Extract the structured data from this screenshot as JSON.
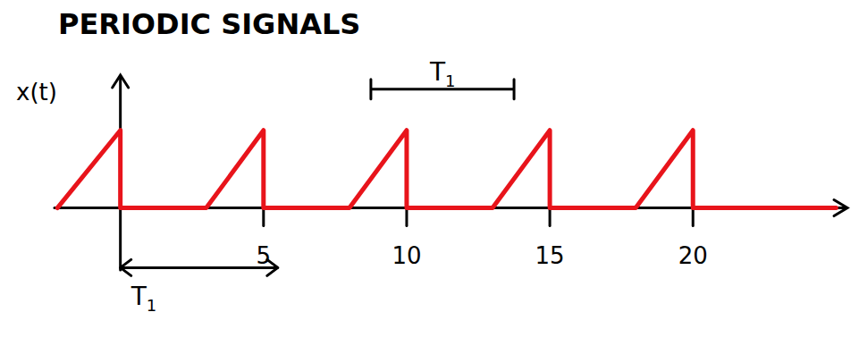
{
  "chart_data": {
    "type": "line",
    "title": "PERIODIC SIGNALS",
    "ylabel": "x(t)",
    "x": [
      -2.2,
      0,
      0,
      3,
      5,
      5,
      8,
      10,
      10,
      13,
      15,
      15,
      18,
      20,
      20,
      25
    ],
    "values": [
      0,
      1,
      0,
      0,
      1,
      0,
      0,
      1,
      0,
      0,
      1,
      0,
      0,
      1,
      0,
      0
    ],
    "color": "#e8141b",
    "xlim": [
      -2.3,
      25.3
    ],
    "ylim": [
      -0.8,
      1.7
    ],
    "xticks": [
      5,
      10,
      15,
      20
    ],
    "tick_labels": "x",
    "annotations": [
      {
        "text": "T1",
        "x": [
          8.75,
          13.75
        ],
        "y": 1.53
      },
      {
        "text": "T1",
        "x": [
          0,
          5.5
        ],
        "y": -0.77
      }
    ]
  }
}
